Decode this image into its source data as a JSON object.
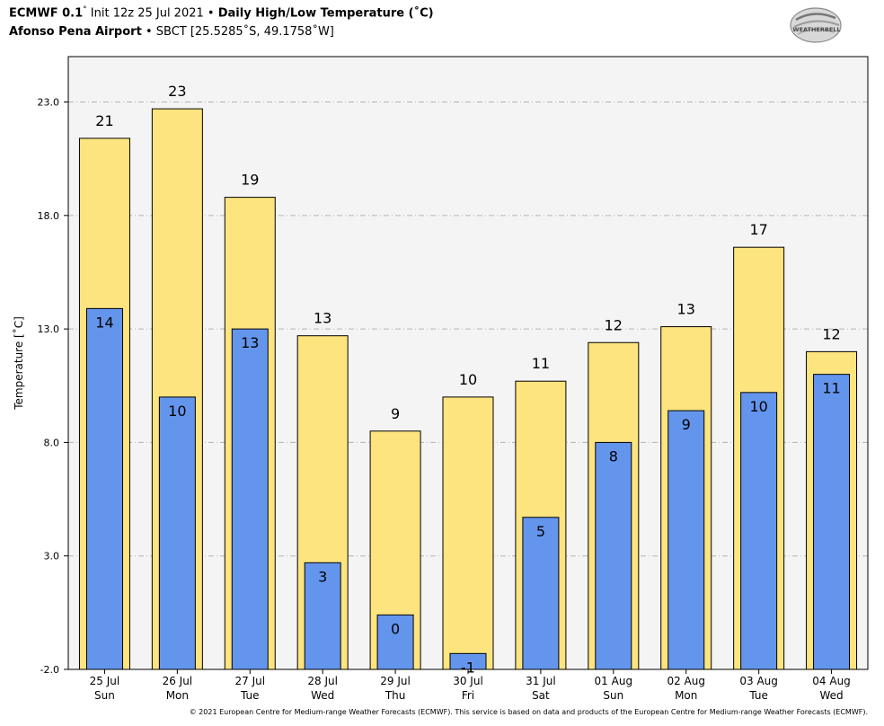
{
  "header": {
    "model": "ECMWF 0.1",
    "deg": "°",
    "init": "Init 12z 25 Jul 2021",
    "bullet": "•",
    "product": "Daily High/Low Temperature (˚C)",
    "station": "Afonso Pena Airport",
    "station_info": "SBCT [25.5285˚S, 49.1758˚W]"
  },
  "logo": {
    "text": "WEATHERBELL",
    "icon": "weatherbell-logo-icon"
  },
  "footer": "© 2021 European Centre for Medium-range Weather Forecasts (ECMWF). This service is based on data and products of the European Centre for Medium-range Weather Forecasts (ECMWF).",
  "colors": {
    "high_bar": "#fde47f",
    "low_bar": "#6495ed",
    "plot_bg": "#f4f4f4",
    "grid": "#b3b3b3"
  },
  "chart_data": {
    "type": "bar",
    "title": "Daily High/Low Temperature (˚C)",
    "ylabel": "Temperature [˚C]",
    "ylim": [
      -2.0,
      25.0
    ],
    "yticks": [
      "-2.0",
      "3.0",
      "8.0",
      "13.0",
      "18.0",
      "23.0"
    ],
    "grid": true,
    "categories": [
      "25 Jul",
      "26 Jul",
      "27 Jul",
      "28 Jul",
      "29 Jul",
      "30 Jul",
      "31 Jul",
      "01 Aug",
      "02 Aug",
      "03 Aug",
      "04 Aug"
    ],
    "weekdays": [
      "Sun",
      "Mon",
      "Tue",
      "Wed",
      "Thu",
      "Fri",
      "Sat",
      "Sun",
      "Mon",
      "Tue",
      "Wed"
    ],
    "series": [
      {
        "name": "High",
        "values": [
          21.4,
          22.7,
          18.8,
          12.7,
          8.5,
          10.0,
          10.7,
          12.4,
          13.1,
          16.6,
          12.0
        ],
        "labels": [
          "21",
          "23",
          "19",
          "13",
          "9",
          "10",
          "11",
          "12",
          "13",
          "17",
          "12"
        ]
      },
      {
        "name": "Low",
        "values": [
          13.9,
          10.0,
          13.0,
          2.7,
          0.4,
          -1.3,
          4.7,
          8.0,
          9.4,
          10.2,
          11.0
        ],
        "labels": [
          "14",
          "10",
          "13",
          "3",
          "0",
          "-1",
          "5",
          "8",
          "9",
          "10",
          "11"
        ]
      }
    ]
  }
}
